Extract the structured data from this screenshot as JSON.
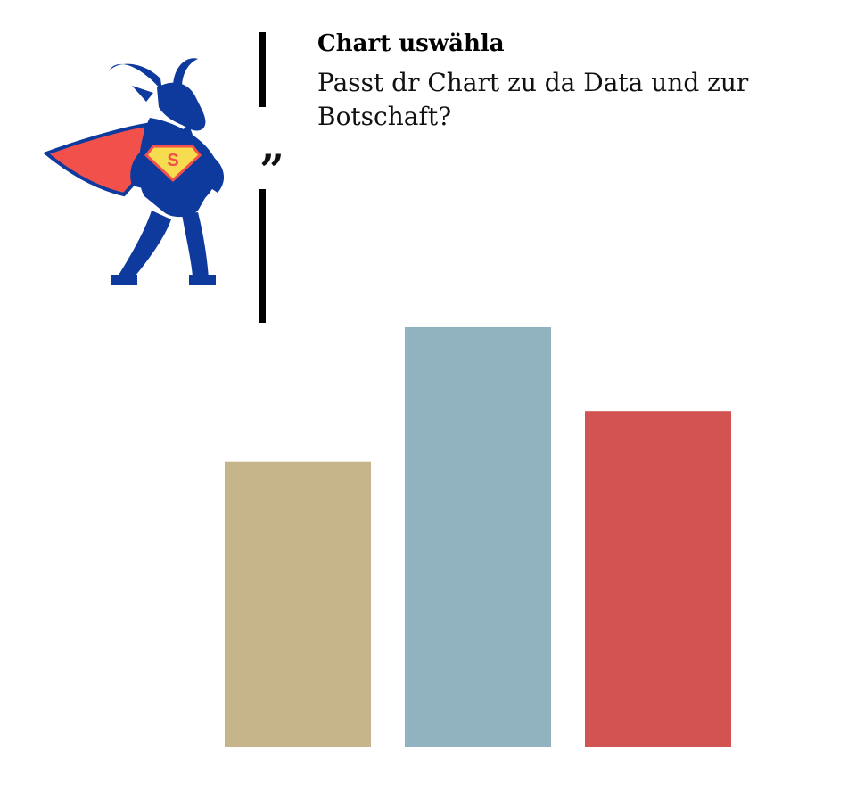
{
  "quote": {
    "mark": "„",
    "title": "Chart uswähla",
    "body": "Passt dr Chart zu da Data und zur Botschaft?"
  },
  "mascot": {
    "icon": "superhero-goat-icon",
    "emblem_letter": "S",
    "colors": {
      "body": "#0d3a9c",
      "cape": "#f2504b",
      "emblem": "#f8dc4f"
    }
  },
  "chart_data": {
    "type": "bar",
    "categories": [
      "",
      "",
      ""
    ],
    "values": [
      68,
      100,
      80
    ],
    "colors": [
      "#c6b48a",
      "#91b2bf",
      "#d35252"
    ],
    "title": "",
    "xlabel": "",
    "ylabel": "",
    "ylim": [
      0,
      100
    ],
    "grid": false,
    "axes_visible": false
  }
}
